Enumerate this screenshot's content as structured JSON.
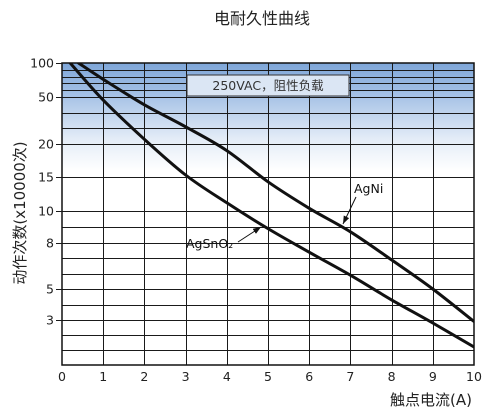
{
  "chart_data": {
    "type": "line",
    "title": "电耐久性曲线",
    "xlabel": "触点电流(A)",
    "ylabel": "动作次数(x10000次)",
    "xlim": [
      0,
      10
    ],
    "ylim": [
      0,
      100
    ],
    "x_ticks": [
      0,
      1,
      2,
      3,
      4,
      5,
      6,
      7,
      8,
      9,
      10
    ],
    "y_ticks": [
      100,
      50,
      20,
      15,
      10,
      8,
      5,
      3
    ],
    "grid": true,
    "annotation": "250VAC，阻性负载",
    "colors": {
      "band": "#7ea6d8",
      "line": "#111111"
    },
    "series": [
      {
        "name": "AgNi",
        "x": [
          0.4,
          1,
          2,
          3,
          4,
          5,
          6,
          7,
          8,
          9,
          10
        ],
        "y": [
          100,
          76,
          45,
          31,
          19,
          14.3,
          10.4,
          8.7,
          6.9,
          5.0,
          2.9
        ]
      },
      {
        "name": "AgSnO₂",
        "x": [
          0.2,
          1,
          2,
          3,
          4,
          5,
          6,
          7,
          8,
          9,
          10
        ],
        "y": [
          100,
          48,
          23,
          15.3,
          11.2,
          8.9,
          7.4,
          5.9,
          4.3,
          2.8,
          1.2
        ]
      }
    ]
  }
}
